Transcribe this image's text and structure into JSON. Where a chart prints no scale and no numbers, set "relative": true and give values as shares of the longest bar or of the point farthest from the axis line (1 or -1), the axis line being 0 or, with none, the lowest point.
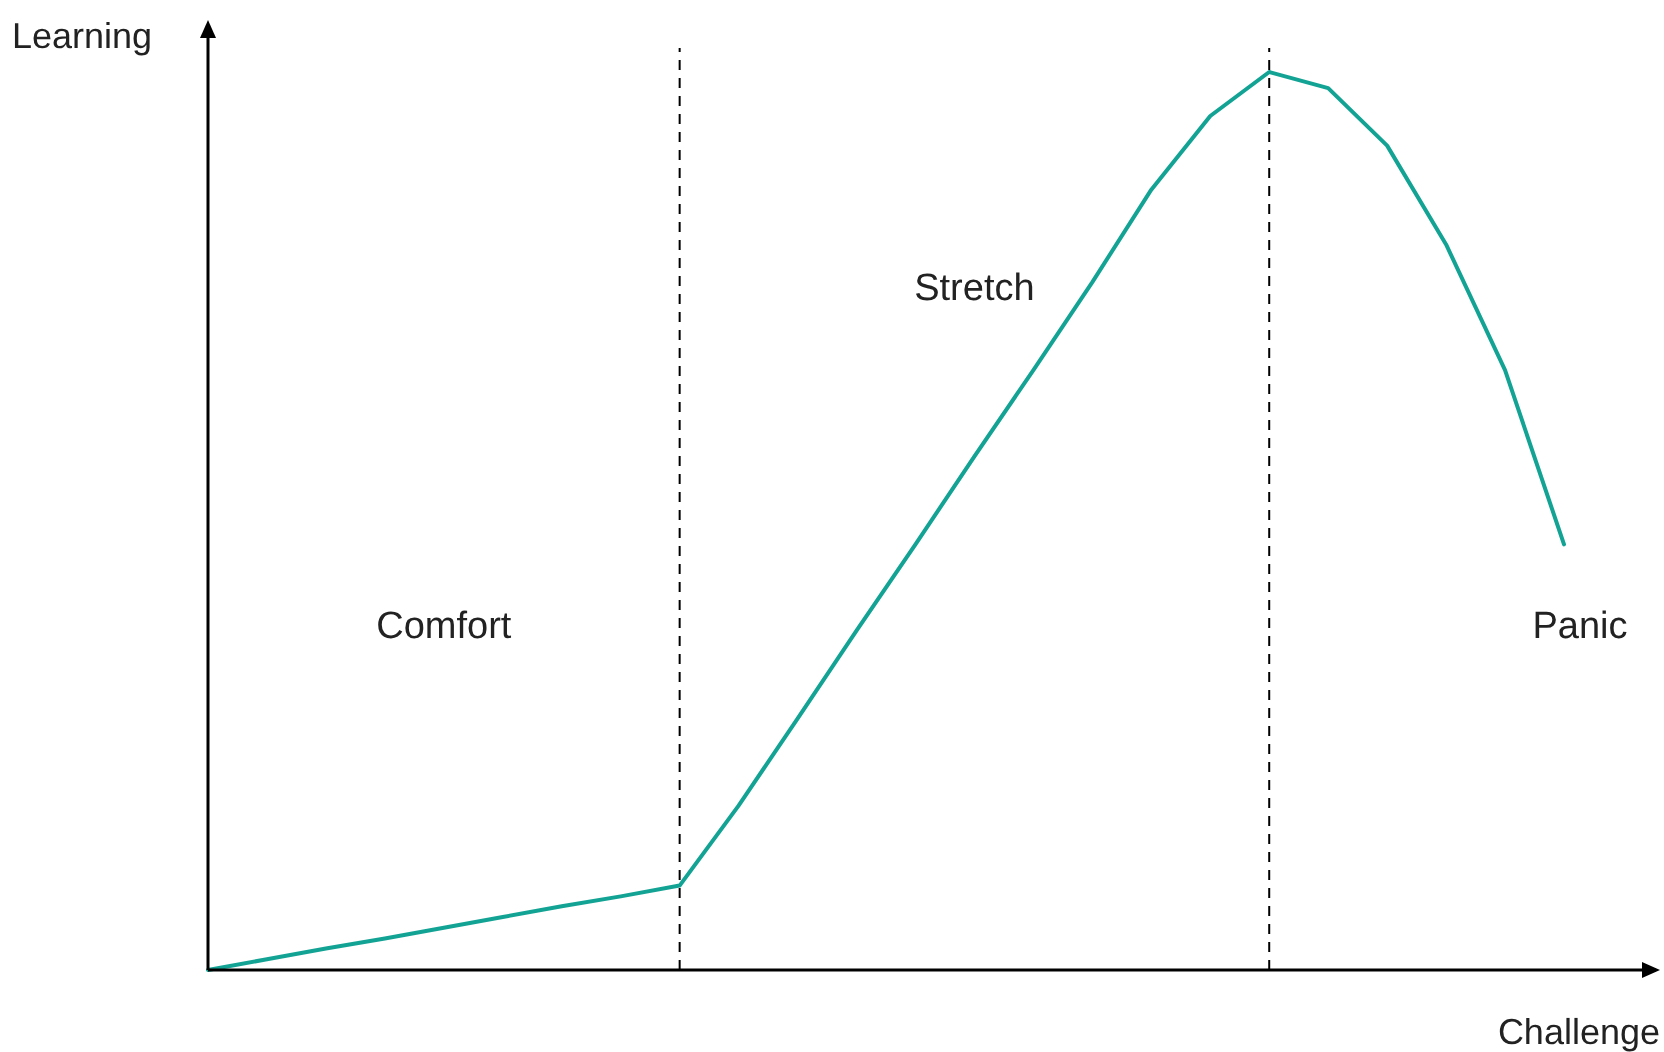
{
  "chart_data": {
    "type": "line",
    "relative": true,
    "xlabel": "Challenge",
    "ylabel": "Learning",
    "categories": [
      null,
      null,
      null,
      null,
      null,
      null,
      null,
      null,
      null,
      null,
      null,
      null,
      null,
      null,
      null,
      null,
      null,
      null,
      null,
      null,
      null,
      null,
      null,
      null
    ],
    "series": [
      {
        "color": "#13a394",
        "values": [
          0,
          0.012,
          0.024,
          0.035,
          0.047,
          0.059,
          0.071,
          0.082,
          0.094,
          0.183,
          0.28,
          0.378,
          0.474,
          0.572,
          0.668,
          0.766,
          0.869,
          0.951,
          1,
          0.982,
          0.918,
          0.808,
          0.668,
          0.474
        ]
      }
    ],
    "annotations": [
      "Comfort",
      "Stretch",
      "Panic"
    ]
  }
}
